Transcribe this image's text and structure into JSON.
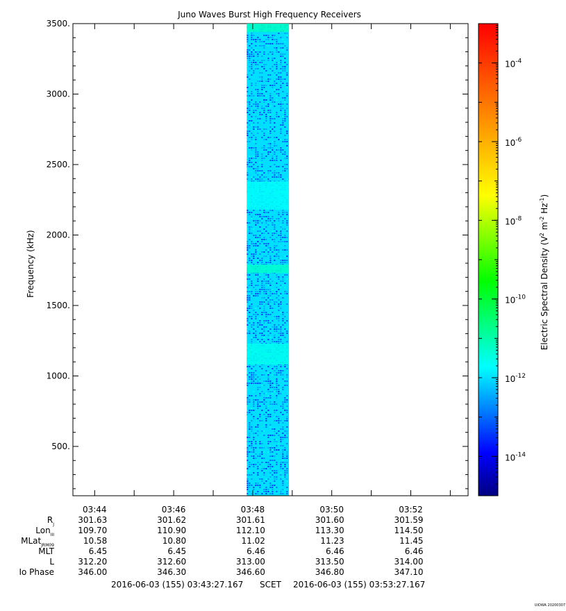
{
  "chart_data": {
    "type": "heatmap",
    "title": "Juno Waves Burst High Frequency Receivers",
    "ylabel": "Frequency (kHz)",
    "ylim": [
      150,
      3500
    ],
    "yticks": [
      500,
      1000,
      1500,
      2000,
      2500,
      3000,
      3500
    ],
    "ytick_labels": [
      "500.",
      "1000.",
      "1500.",
      "2000.",
      "2500.",
      "3000.",
      "3500."
    ],
    "x_time_range": [
      "03:43:27",
      "03:53:27"
    ],
    "xtick_labels": [
      "03:44",
      "03:46",
      "03:48",
      "03:50",
      "03:52"
    ],
    "xtick_times": [
      "03:44",
      "03:46",
      "03:48",
      "03:50",
      "03:52"
    ],
    "data_interval": [
      "03:47:51",
      "03:48:55"
    ],
    "background_level_exp": -12.0,
    "bright_bands": [
      {
        "freq_range": [
          3440,
          3500
        ],
        "level_exp": -11.2
      },
      {
        "freq_range": [
          1730,
          1790
        ],
        "level_exp": -11.3
      },
      {
        "freq_range": [
          1080,
          1230
        ],
        "level_exp": -11.6
      },
      {
        "freq_range": [
          2180,
          2380
        ],
        "level_exp": -11.7
      }
    ],
    "colorbar": {
      "label": "Electric Spectral Density (V² m⁻² Hz⁻¹)",
      "label_parts": [
        "Electric Spectral Density (V",
        "2",
        " m",
        "-2",
        " Hz",
        "-1",
        ")"
      ],
      "scale": "log",
      "range_exp": [
        -15,
        -3
      ],
      "ticks": [
        {
          "base": "10",
          "exp": "-4"
        },
        {
          "base": "10",
          "exp": "-6"
        },
        {
          "base": "10",
          "exp": "-8"
        },
        {
          "base": "10",
          "exp": "-10"
        },
        {
          "base": "10",
          "exp": "-12"
        },
        {
          "base": "10",
          "exp": "-14"
        }
      ],
      "tick_exps": [
        -4,
        -6,
        -8,
        -10,
        -12,
        -14
      ],
      "colors": [
        "#000080",
        "#0000ff",
        "#0080ff",
        "#00ffff",
        "#00ff80",
        "#00ff00",
        "#80ff00",
        "#ffff00",
        "#ffc000",
        "#ff8000",
        "#ff4000",
        "#ff0000"
      ]
    },
    "ephemeris": {
      "labels": [
        {
          "main": "R",
          "sub": "J"
        },
        {
          "main": "Lon",
          "sub": "III"
        },
        {
          "main": "MLat",
          "sub": "JRM09"
        },
        {
          "main": "MLT",
          "sub": ""
        },
        {
          "main": "L",
          "sub": ""
        },
        {
          "main": "Io Phase",
          "sub": ""
        }
      ],
      "rows": [
        [
          "301.63",
          "301.62",
          "301.61",
          "301.60",
          "301.59"
        ],
        [
          "109.70",
          "110.90",
          "112.10",
          "113.30",
          "114.50"
        ],
        [
          "10.58",
          "10.80",
          "11.02",
          "11.23",
          "11.45"
        ],
        [
          "6.45",
          "6.45",
          "6.46",
          "6.46",
          "6.46"
        ],
        [
          "312.20",
          "312.60",
          "313.00",
          "313.50",
          "314.00"
        ],
        [
          "346.00",
          "346.30",
          "346.60",
          "346.80",
          "347.10"
        ]
      ]
    },
    "time_range_label": {
      "start": "2016-06-03 (155) 03:43:27.167",
      "middle": "SCET",
      "end": "2016-06-03 (155) 03:53:27.167"
    },
    "footer_stamp": "UIOWA 20200307"
  }
}
